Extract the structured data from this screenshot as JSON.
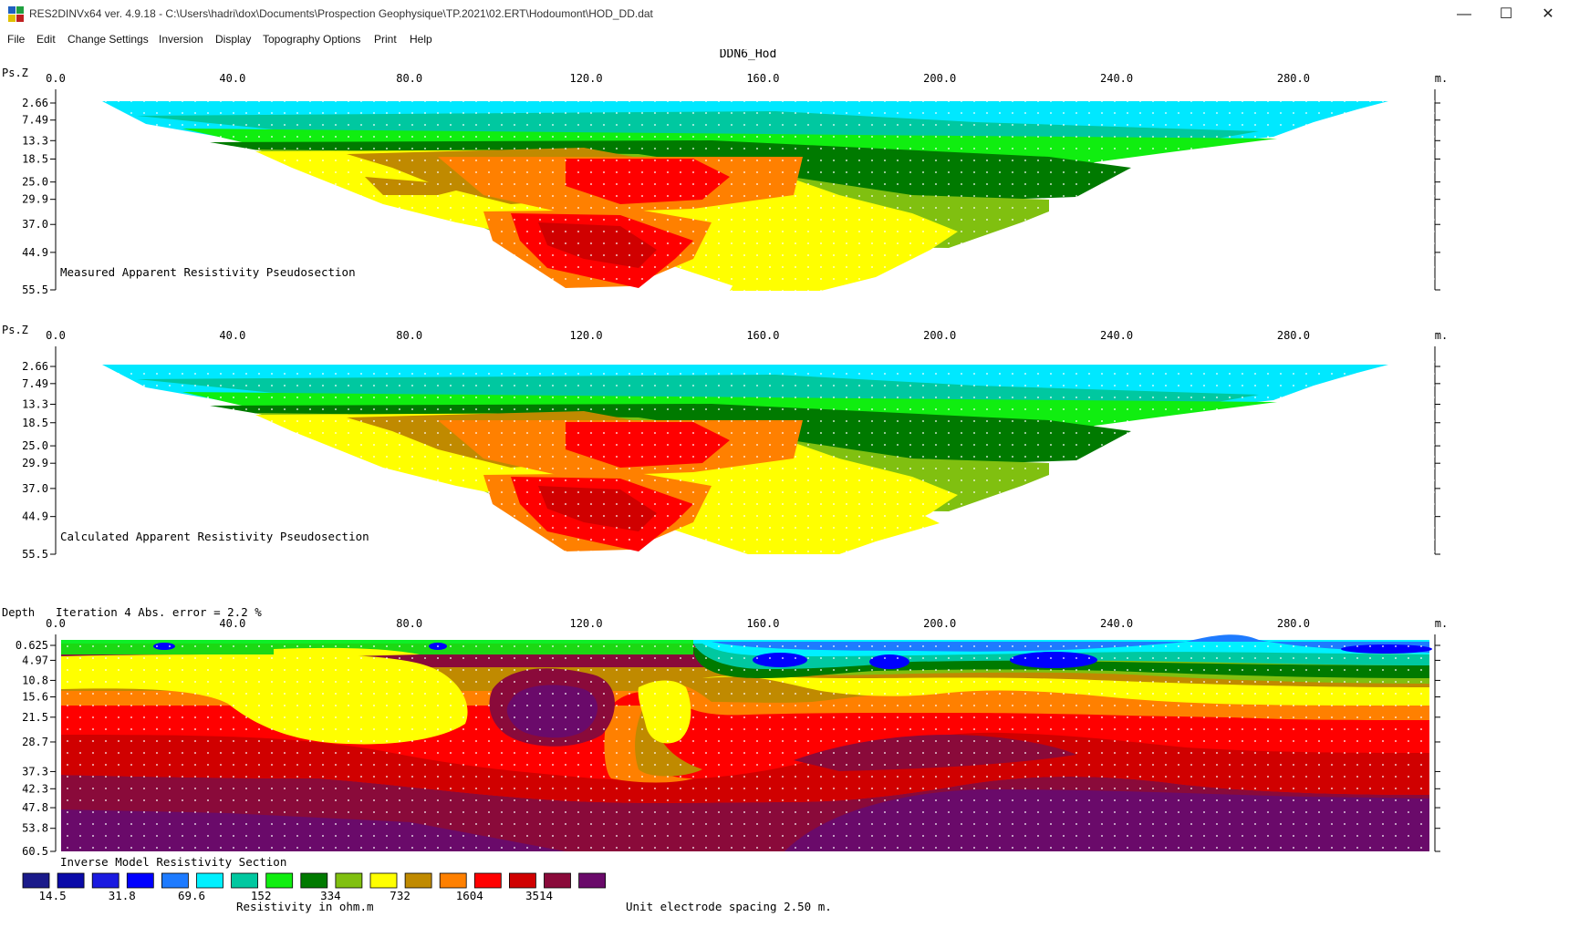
{
  "window": {
    "title": "RES2DINVx64 ver. 4.9.18 - C:\\Users\\hadri\\dox\\Documents\\Prospection Geophysique\\TP.2021\\02.ERT\\Hodoumont\\HOD_DD.dat",
    "minimize": "—",
    "maximize": "☐",
    "close": "✕"
  },
  "menu": [
    "File",
    "Edit",
    "Change Settings",
    "Inversion",
    "Display",
    "Topography Options",
    "Print",
    "Help"
  ],
  "plot_title": "DDN6_Hod",
  "x_ticks": [
    "0.0",
    "40.0",
    "80.0",
    "120.0",
    "160.0",
    "200.0",
    "240.0",
    "280.0"
  ],
  "x_unit": "m.",
  "panels": [
    {
      "yaxis_label": "Ps.Z",
      "y_ticks": [
        "2.66",
        "7.49",
        "13.3",
        "18.5",
        "25.0",
        "29.9",
        "37.0",
        "44.9",
        "55.5"
      ],
      "caption": "Measured Apparent Resistivity Pseudosection"
    },
    {
      "yaxis_label": "Ps.Z",
      "y_ticks": [
        "2.66",
        "7.49",
        "13.3",
        "18.5",
        "25.0",
        "29.9",
        "37.0",
        "44.9",
        "55.5"
      ],
      "caption": "Calculated Apparent Resistivity Pseudosection"
    },
    {
      "yaxis_label": "Depth",
      "header": "Iteration 4 Abs. error = 2.2 %",
      "y_ticks": [
        "0.625",
        "4.97",
        "10.8",
        "15.6",
        "21.5",
        "28.7",
        "37.3",
        "42.3",
        "47.8",
        "53.8",
        "60.5"
      ],
      "caption": "Inverse Model Resistivity Section"
    }
  ],
  "colors": [
    "#1a1a8a",
    "#0a0aa8",
    "#1a1ae0",
    "#0000ff",
    "#1e7bff",
    "#00f0ff",
    "#00c8a0",
    "#10ee10",
    "#007a00",
    "#80c010",
    "#ffff00",
    "#c08a00",
    "#ff8000",
    "#ff0000",
    "#d00000",
    "#8a0a3a",
    "#6a0a6a"
  ],
  "legend": {
    "labels": [
      "14.5",
      "31.8",
      "69.6",
      "152",
      "334",
      "732",
      "1604",
      "3514"
    ],
    "units": "Resistivity in ohm.m",
    "spacing": "Unit electrode spacing 2.50 m."
  }
}
